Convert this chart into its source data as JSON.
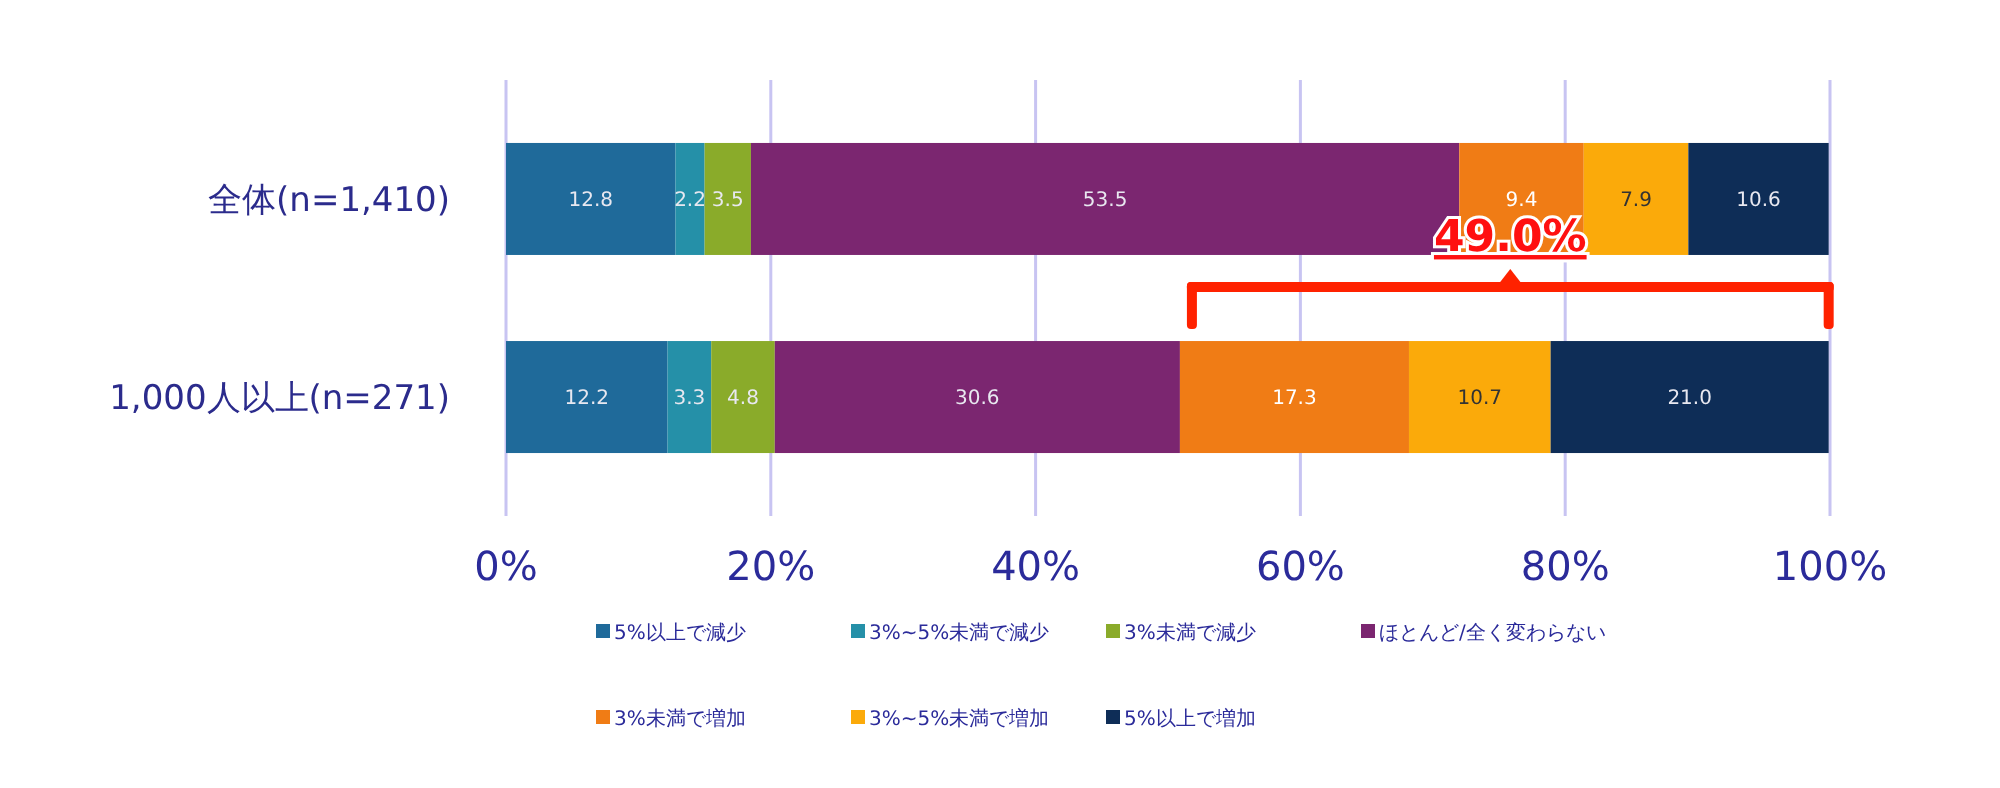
{
  "chart_data": {
    "type": "bar",
    "orientation": "horizontal",
    "stacked": true,
    "categories": [
      "全体(n=1,410)",
      "1,000人以上(n=271)"
    ],
    "series": [
      {
        "name": "5%以上で減少",
        "color": "#1f6a9a",
        "values": [
          12.8,
          12.2
        ]
      },
      {
        "name": "3%~5%未満で減少",
        "color": "#2590a8",
        "values": [
          2.2,
          3.3
        ]
      },
      {
        "name": "3%未満で減少",
        "color": "#8aab2a",
        "values": [
          3.5,
          4.8
        ]
      },
      {
        "name": "ほとんど/全く変わらない",
        "color": "#7b2670",
        "values": [
          53.5,
          30.6
        ]
      },
      {
        "name": "3%未満で増加",
        "color": "#f07c15",
        "values": [
          9.4,
          17.3
        ]
      },
      {
        "name": "3%~5%未満で増加",
        "color": "#fbaa0a",
        "values": [
          7.9,
          10.7
        ]
      },
      {
        "name": "5%以上で増加",
        "color": "#0e2d57",
        "values": [
          10.6,
          21.0
        ],
        "value_labels": [
          "10.6",
          "21.0"
        ]
      }
    ],
    "xlim": [
      0,
      100
    ],
    "xticks": [
      {
        "value": 0,
        "label": "0%"
      },
      {
        "value": 20,
        "label": "20%"
      },
      {
        "value": 40,
        "label": "40%"
      },
      {
        "value": 60,
        "label": "60%"
      },
      {
        "value": 80,
        "label": "80%"
      },
      {
        "value": 100,
        "label": "100%"
      }
    ],
    "grid": "x",
    "legend": "bottom",
    "data_labels": true,
    "annotations": [
      "49.0%"
    ]
  }
}
